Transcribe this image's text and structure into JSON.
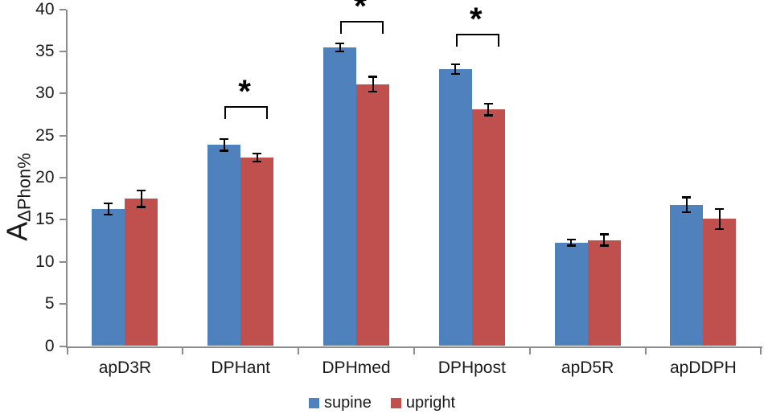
{
  "chart_data": {
    "type": "bar",
    "title": "",
    "ylabel_base": "A",
    "ylabel_subscript": "ΔPhon%",
    "xlabel": "",
    "categories": [
      "apD3R",
      "DPHant",
      "DPHmed",
      "DPHpost",
      "apD5R",
      "apDDPH"
    ],
    "series": [
      {
        "name": "supine",
        "color": "#4F81BD",
        "values": [
          16.3,
          23.9,
          35.5,
          32.9,
          12.3,
          16.8
        ],
        "errors": [
          0.8,
          0.8,
          0.6,
          0.7,
          0.5,
          1.0
        ]
      },
      {
        "name": "upright",
        "color": "#C0504D",
        "values": [
          17.5,
          22.4,
          31.1,
          28.1,
          12.6,
          15.1
        ],
        "errors": [
          1.1,
          0.6,
          1.0,
          0.8,
          0.8,
          1.3
        ]
      }
    ],
    "significance_brackets": [
      {
        "category": "DPHant",
        "label": "*"
      },
      {
        "category": "DPHmed",
        "label": "*"
      },
      {
        "category": "DPHpost",
        "label": "*"
      }
    ],
    "ylim": [
      0,
      40
    ],
    "yticks": [
      0,
      5,
      10,
      15,
      20,
      25,
      30,
      35,
      40
    ],
    "grid": "off",
    "legend_position": "bottom",
    "colors": {
      "axis": "#8C8C8C",
      "error_bar": "#000000",
      "text": "#1A1A1A"
    }
  }
}
